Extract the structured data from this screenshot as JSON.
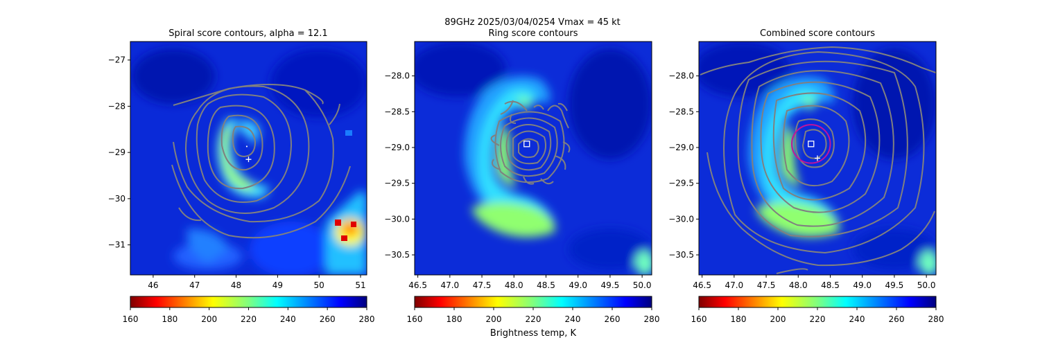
{
  "figure": {
    "suptitle_line1": "89GHz  2025/03/04/0254    Vmax = 45 kt",
    "colorbar_label": "Brightness temp, K"
  },
  "colors": {
    "contour": "#808080",
    "marker": "#ffffff",
    "ring": "#c0149c"
  },
  "colormap": {
    "name": "jet_r",
    "range": [
      160,
      280
    ],
    "ticks": [
      "160",
      "180",
      "200",
      "220",
      "240",
      "260",
      "280"
    ]
  },
  "chart_data": [
    {
      "type": "heatmap",
      "title": "Spiral score contours, alpha = 12.1",
      "xlim": [
        45.45,
        51.15
      ],
      "ylim": [
        -31.65,
        -26.6
      ],
      "x_ticks": [
        "46",
        "47",
        "48",
        "49",
        "50",
        "51"
      ],
      "y_ticks": [
        "−27",
        "−28",
        "−29",
        "−30",
        "−31"
      ],
      "markers": [
        {
          "type": "plus",
          "x": 48.3,
          "y": -29.15
        }
      ],
      "contours": "spiral score contours (gray)",
      "colormap_range": [
        160,
        280
      ],
      "grid": false
    },
    {
      "type": "heatmap",
      "title": "Ring score contours",
      "xlim": [
        46.45,
        50.15
      ],
      "ylim": [
        -30.78,
        -27.52
      ],
      "x_ticks": [
        "46.5",
        "47.0",
        "47.5",
        "48.0",
        "48.5",
        "49.0",
        "49.5",
        "50.0"
      ],
      "y_ticks": [
        "−28.0",
        "−28.5",
        "−29.0",
        "−29.5",
        "−30.0",
        "−30.5"
      ],
      "markers": [
        {
          "type": "square",
          "x": 48.2,
          "y": -28.95
        }
      ],
      "contours": "ring score contours (gray)",
      "colormap_range": [
        160,
        280
      ],
      "grid": false
    },
    {
      "type": "heatmap",
      "title": "Combined score contours",
      "xlim": [
        46.45,
        50.15
      ],
      "ylim": [
        -30.78,
        -27.52
      ],
      "x_ticks": [
        "46.5",
        "47.0",
        "47.5",
        "48.0",
        "48.5",
        "49.0",
        "49.5",
        "50.0"
      ],
      "y_ticks": [
        "−28.0",
        "−28.5",
        "−29.0",
        "−29.5",
        "−30.0",
        "−30.5"
      ],
      "markers": [
        {
          "type": "square",
          "x": 48.2,
          "y": -28.95
        },
        {
          "type": "plus",
          "x": 48.3,
          "y": -29.15
        },
        {
          "type": "circle",
          "x": 48.2,
          "y": -28.95,
          "r": 0.3
        }
      ],
      "contours": "combined score contours (gray)",
      "colormap_range": [
        160,
        280
      ],
      "grid": false
    }
  ]
}
